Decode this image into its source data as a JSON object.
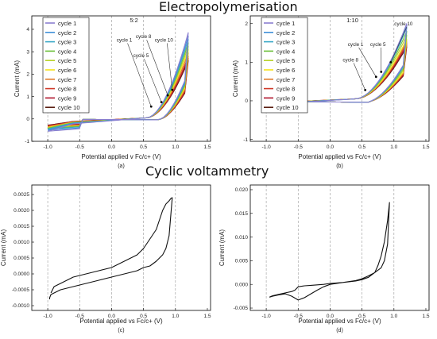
{
  "section_titles": {
    "top": "Electropolymerisation",
    "bottom": "Cyclic voltammetry"
  },
  "colors": [
    "#7b2d8e",
    "#8b7fd0",
    "#3f8fd8",
    "#3aa8c8",
    "#6cbf3a",
    "#b7d12a",
    "#f5e31a",
    "#e07b2a",
    "#d13a2a",
    "#b0132a",
    "#5a1f12"
  ],
  "chart_data": [
    {
      "panel": "a",
      "type": "line",
      "caption": "(a)",
      "xlabel": "Potential applied v Fc/c+ (V)",
      "ylabel": "Current (mA)",
      "xlim": [
        -1.25,
        1.55
      ],
      "ylim": [
        -1.0,
        4.6
      ],
      "xticks": [
        -1.0,
        -0.5,
        0.0,
        0.5,
        1.0,
        1.5
      ],
      "yticks": [
        -1,
        0,
        1,
        2,
        3,
        4
      ],
      "tick_labels_x": [
        "-1.0",
        "-0.5",
        "0.0",
        "0.5",
        "1.0",
        "1.5"
      ],
      "tick_labels_y": [
        "-1",
        "0",
        "1",
        "2",
        "3",
        "4"
      ],
      "vlines": [
        -1.0,
        -0.5,
        0.0,
        0.5,
        1.0
      ],
      "ratio_label": "5:2",
      "legend": [
        "cycle 1",
        "cycle 2",
        "cycle 3",
        "cycle 4",
        "cycle 5",
        "cycle 6",
        "cycle 7",
        "cycle 8",
        "cycle 9",
        "cycle 10"
      ],
      "legend_position": "top-left",
      "series_params": {
        "peaks": [
          3.85,
          3.7,
          3.55,
          3.4,
          3.25,
          3.1,
          2.95,
          2.8,
          2.7,
          2.6
        ],
        "onset": 0.55,
        "vertex": 1.2,
        "neg": [
          -0.55,
          -0.5,
          -0.45,
          -0.42,
          -0.4,
          -0.38,
          -0.35,
          -0.32,
          -0.3,
          -0.28
        ]
      },
      "annotations": [
        {
          "text": "cycle 1",
          "points_to": [
            0.62,
            0.55
          ]
        },
        {
          "text": "cycle 5",
          "points_to": [
            0.78,
            0.75
          ]
        },
        {
          "text": "cycle 8",
          "points_to": [
            0.88,
            1.05
          ]
        },
        {
          "text": "cycle 10",
          "points_to": [
            0.95,
            1.3
          ]
        }
      ]
    },
    {
      "panel": "b",
      "type": "line",
      "caption": "(b)",
      "xlabel": "Potential applied vs Fc/c+ (V)",
      "ylabel": "Current (mA)",
      "xlim": [
        -1.25,
        1.55
      ],
      "ylim": [
        -1.05,
        2.2
      ],
      "xticks": [
        -1.0,
        -0.5,
        0.0,
        0.5,
        1.0,
        1.5
      ],
      "yticks": [
        -1,
        0,
        1,
        2
      ],
      "tick_labels_x": [
        "-1.0",
        "-0.5",
        "0.0",
        "0.5",
        "1.0",
        "1.5"
      ],
      "tick_labels_y": [
        "-1",
        "0",
        "1",
        "2"
      ],
      "vlines": [
        -1.0,
        -0.5,
        0.0,
        0.5,
        1.0
      ],
      "ratio_label": "1:10",
      "legend": [
        "cycle 1",
        "cycle 2",
        "cycle 3",
        "cycle 4",
        "cycle 5",
        "cycle 6",
        "cycle 7",
        "cycle 8",
        "cycle 9",
        "cycle 10"
      ],
      "legend_position": "top-left",
      "series_params": {
        "peaks": [
          2.0,
          1.95,
          1.9,
          1.8,
          1.7,
          1.6,
          1.55,
          1.5,
          1.45,
          1.4
        ],
        "onset": 0.4,
        "vertex": 1.2,
        "neg": [
          -0.12,
          -0.1,
          -0.1,
          -0.09,
          -0.08,
          -0.08,
          -0.07,
          -0.07,
          -0.06,
          -0.06
        ]
      },
      "annotations": [
        {
          "text": "cycle 10",
          "points_to": [
            0.95,
            1.0
          ]
        },
        {
          "text": "cycle 1",
          "points_to": [
            0.72,
            0.62
          ]
        },
        {
          "text": "cycle 5",
          "points_to": [
            0.8,
            0.75
          ]
        },
        {
          "text": "cycle 8",
          "points_to": [
            0.55,
            0.28
          ]
        }
      ]
    },
    {
      "panel": "c",
      "type": "line",
      "caption": "(c)",
      "xlabel": "Potential applied vs Fc/c+ (V)",
      "ylabel": "Current (mA)",
      "xlim": [
        -1.25,
        1.55
      ],
      "ylim": [
        -0.00115,
        0.0028
      ],
      "xticks": [
        -1.0,
        -0.5,
        0.0,
        0.5,
        1.0,
        1.5
      ],
      "yticks": [
        -0.001,
        -0.0005,
        0.0,
        0.0005,
        0.001,
        0.0015,
        0.002,
        0.0025
      ],
      "tick_labels_x": [
        "-1.0",
        "-0.5",
        "0.0",
        "0.5",
        "1.0",
        "1.5"
      ],
      "tick_labels_y": [
        "-0.0010",
        "-0.0005",
        "0.0000",
        "0.0005",
        "0.0010",
        "0.0015",
        "0.0020",
        "0.0025"
      ],
      "vlines": [
        -1.0,
        -0.5,
        0.0,
        0.5,
        1.0
      ],
      "series": [
        {
          "x": [
            -0.95,
            -0.9,
            -0.8,
            -0.6,
            -0.4,
            -0.2,
            0.0,
            0.2,
            0.4,
            0.5,
            0.6,
            0.7,
            0.75,
            0.8,
            0.85,
            0.9,
            0.93,
            0.95,
            0.9,
            0.85,
            0.8,
            0.7,
            0.6,
            0.5,
            0.4,
            0.2,
            0.0,
            -0.2,
            -0.4,
            -0.6,
            -0.8,
            -0.9,
            -0.95,
            -0.97,
            -0.97
          ],
          "y": [
            -0.0006,
            -0.0004,
            -0.0003,
            -0.0001,
            0.0,
            0.0001,
            0.0002,
            0.0004,
            0.0006,
            0.0008,
            0.0011,
            0.0014,
            0.0017,
            0.002,
            0.0022,
            0.0023,
            0.00238,
            0.0024,
            0.0012,
            0.0008,
            0.0006,
            0.0004,
            0.00025,
            0.0002,
            0.0001,
            0.0,
            -0.0001,
            -0.0002,
            -0.0003,
            -0.0004,
            -0.0005,
            -0.0006,
            -0.00065,
            -0.00075,
            -0.0008
          ]
        }
      ]
    },
    {
      "panel": "d",
      "type": "line",
      "caption": "(d)",
      "xlabel": "Potential applied vs Fc/c+ (V)",
      "ylabel": "Current (mA)",
      "xlim": [
        -1.25,
        1.55
      ],
      "ylim": [
        -0.0055,
        0.021
      ],
      "xticks": [
        -1.0,
        -0.5,
        0.0,
        0.5,
        1.0,
        1.5
      ],
      "yticks": [
        -0.005,
        0.0,
        0.005,
        0.01,
        0.015,
        0.02
      ],
      "tick_labels_x": [
        "-1.0",
        "-0.5",
        "0.0",
        "0.5",
        "1.0",
        "1.5"
      ],
      "tick_labels_y": [
        "-0.005",
        "0.000",
        "0.005",
        "0.010",
        "0.015",
        "0.020"
      ],
      "vlines": [
        -1.0,
        -0.5,
        0.0,
        0.5,
        1.0
      ],
      "series": [
        {
          "x": [
            -0.95,
            -0.9,
            -0.8,
            -0.7,
            -0.6,
            -0.55,
            -0.5,
            -0.4,
            -0.3,
            -0.2,
            -0.1,
            0.0,
            0.2,
            0.4,
            0.5,
            0.6,
            0.7,
            0.75,
            0.8,
            0.85,
            0.9,
            0.93,
            0.9,
            0.85,
            0.8,
            0.7,
            0.6,
            0.5,
            0.4,
            0.2,
            0.0,
            -0.1,
            -0.2,
            -0.3,
            -0.4,
            -0.5,
            -0.6,
            -0.7,
            -0.8,
            -0.9,
            -0.95
          ],
          "y": [
            -0.0027,
            -0.0024,
            -0.0021,
            -0.0018,
            -0.0015,
            -0.0012,
            -0.0005,
            -0.0003,
            -0.0002,
            -0.0001,
            0.0,
            0.0002,
            0.0004,
            0.0007,
            0.001,
            0.0015,
            0.0025,
            0.004,
            0.006,
            0.009,
            0.0135,
            0.0173,
            0.0085,
            0.005,
            0.0035,
            0.0025,
            0.0018,
            0.0012,
            0.0008,
            0.0004,
            0.0,
            -0.0005,
            -0.0012,
            -0.002,
            -0.0028,
            -0.0033,
            -0.0025,
            -0.002,
            -0.0022,
            -0.0025,
            -0.0027
          ]
        }
      ]
    }
  ]
}
